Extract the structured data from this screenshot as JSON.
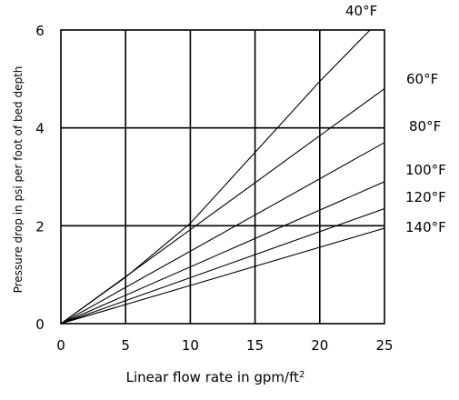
{
  "chart_data": {
    "type": "line",
    "xlabel": "Linear flow rate in gpm/ft",
    "xlabel_superscript": "2",
    "ylabel": "Pressure drop in psi per foot of bed depth",
    "xlim": [
      0,
      25
    ],
    "ylim": [
      0,
      6
    ],
    "xticks": [
      "0",
      "5",
      "10",
      "15",
      "20",
      "25"
    ],
    "yticks": [
      "0",
      "2",
      "4",
      "6"
    ],
    "grid": true,
    "series": [
      {
        "name": "40°F",
        "x": [
          0,
          5,
          10,
          15,
          20,
          25
        ],
        "y": [
          0,
          0.95,
          2.05,
          3.5,
          4.95,
          6.3
        ]
      },
      {
        "name": "60°F",
        "x": [
          0,
          25
        ],
        "y": [
          0,
          4.8
        ]
      },
      {
        "name": "80°F",
        "x": [
          0,
          25
        ],
        "y": [
          0,
          3.7
        ]
      },
      {
        "name": "100°F",
        "x": [
          0,
          25
        ],
        "y": [
          0,
          2.9
        ]
      },
      {
        "name": "120°F",
        "x": [
          0,
          25
        ],
        "y": [
          0,
          2.35
        ]
      },
      {
        "name": "140°F",
        "x": [
          0,
          25
        ],
        "y": [
          0,
          1.95
        ]
      }
    ]
  }
}
